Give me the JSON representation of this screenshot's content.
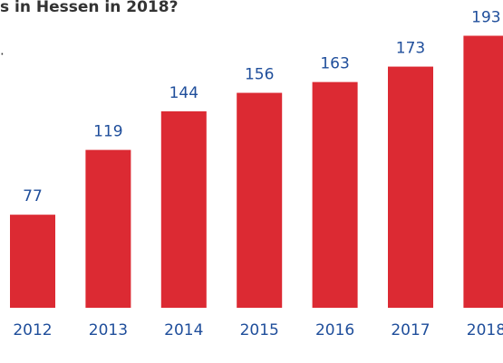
{
  "chart_data": {
    "type": "bar",
    "title": "s in Hessen in 2018?",
    "subtitle": ".",
    "categories": [
      "2012",
      "2013",
      "2014",
      "2015",
      "2016",
      "2017",
      "2018"
    ],
    "values": [
      77,
      119,
      144,
      156,
      163,
      173,
      193
    ],
    "color": "#dc2a33",
    "label_color": "#1f4e9b",
    "ylim": [
      0,
      216
    ]
  }
}
